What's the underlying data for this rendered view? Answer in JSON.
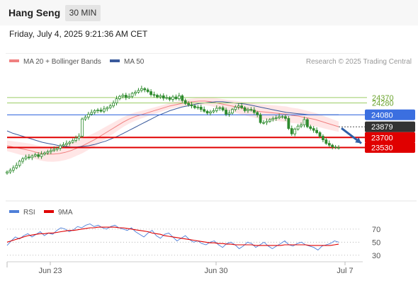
{
  "header": {
    "instrument": "Hang Seng",
    "interval": "30 MIN",
    "timestamp": "Friday, July 4, 2025 9:21:36 AM CET"
  },
  "legend": {
    "ma20_label": "MA 20 + Bollinger Bands",
    "ma50_label": "MA 50",
    "credit": "Research © 2025 Trading Central",
    "rsi_label": "RSI",
    "rsi_ma_label": "9MA"
  },
  "colors": {
    "ma20": "#f08080",
    "ma50": "#3a5a9c",
    "bollinger_fill": "#ffe0e0",
    "candle": "#2e8b2e",
    "resistance_line": "#9ccc65",
    "pivot": "#3b6fe0",
    "support": "#e00000",
    "current": "#333333",
    "rsi": "#4f7fd8",
    "rsi_ma": "#e00000",
    "arrow": "#2e5fa6"
  },
  "chart_data": [
    {
      "type": "candlestick",
      "title": "",
      "x_labels": [
        "Jun 23",
        "Jun 30",
        "Jul 7"
      ],
      "price_range": [
        22740,
        24880
      ],
      "levels": {
        "resistance": [
          24370,
          24280
        ],
        "pivot": 24080,
        "current": 23879,
        "support": [
          23700,
          23530
        ]
      },
      "level_labels": {
        "resistance": [
          "24370",
          "24280"
        ],
        "pivot": "24080",
        "current": "23879",
        "support": [
          "23700",
          "23530"
        ]
      },
      "close_series": [
        23120,
        23150,
        23190,
        23230,
        23300,
        23340,
        23370,
        23360,
        23390,
        23410,
        23380,
        23420,
        23440,
        23460,
        23480,
        23500,
        23520,
        23560,
        23580,
        23600,
        23620,
        23650,
        23690,
        23720,
        24010,
        24040,
        24090,
        24120,
        24150,
        24160,
        24140,
        24180,
        24200,
        24230,
        24280,
        24350,
        24390,
        24410,
        24370,
        24390,
        24440,
        24460,
        24490,
        24520,
        24500,
        24470,
        24420,
        24410,
        24380,
        24400,
        24360,
        24370,
        24340,
        24380,
        24350,
        24400,
        24320,
        24270,
        24250,
        24230,
        24200,
        24210,
        24170,
        24140,
        24110,
        24130,
        24150,
        24190,
        24200,
        24160,
        24090,
        24110,
        24170,
        24210,
        24230,
        24200,
        24150,
        24170,
        24160,
        24120,
        24080,
        23950,
        23950,
        23970,
        24000,
        24020,
        24030,
        24050,
        24050,
        24020,
        23850,
        23760,
        23840,
        23890,
        23910,
        24000,
        23880,
        23850,
        23820,
        23780,
        23720,
        23660,
        23600,
        23570,
        23540,
        23530,
        23530
      ],
      "ma20": [
        23560,
        23540,
        23520,
        23500,
        23480,
        23450,
        23430,
        23420,
        23420,
        23430,
        23450,
        23480,
        23520,
        23560,
        23610,
        23660,
        23720,
        23780,
        23840,
        23900,
        23960,
        24010,
        24050,
        24080,
        24110,
        24140,
        24170,
        24200,
        24230,
        24250,
        24270,
        24290,
        24300,
        24310,
        24310,
        24300,
        24280,
        24260,
        24240,
        24220,
        24200,
        24180,
        24160,
        24140,
        24130,
        24120,
        24110,
        24100,
        24090,
        24070,
        24060,
        24040,
        24020,
        24000,
        23970,
        23940,
        23910,
        23880
      ],
      "ma50": [
        23810,
        23770,
        23740,
        23710,
        23680,
        23650,
        23620,
        23600,
        23580,
        23560,
        23550,
        23540,
        23540,
        23550,
        23560,
        23580,
        23610,
        23640,
        23680,
        23720,
        23770,
        23820,
        23870,
        23920,
        23970,
        24020,
        24070,
        24110,
        24150,
        24180,
        24210,
        24230,
        24250,
        24270,
        24280,
        24290,
        24300,
        24300,
        24290,
        24280,
        24270,
        24260,
        24240,
        24220,
        24200,
        24180,
        24160,
        24140,
        24120,
        24110,
        24100,
        24090,
        24080,
        24080,
        24080,
        24080,
        24080,
        24080
      ],
      "projection": {
        "from": 23879,
        "to": 23530
      }
    },
    {
      "type": "line",
      "title": "RSI",
      "y_ticks": [
        70,
        50,
        30
      ],
      "ylim": [
        20,
        85
      ],
      "series": [
        {
          "name": "RSI",
          "values": [
            45,
            52,
            58,
            55,
            60,
            63,
            58,
            62,
            66,
            60,
            64,
            62,
            68,
            72,
            70,
            66,
            69,
            74,
            72,
            76,
            78,
            74,
            76,
            72,
            70,
            74,
            76,
            72,
            70,
            68,
            72,
            66,
            62,
            58,
            64,
            68,
            60,
            56,
            62,
            64,
            58,
            52,
            56,
            60,
            54,
            50,
            52,
            48,
            46,
            50,
            52,
            46,
            42,
            48,
            50,
            46,
            40,
            44,
            50,
            48,
            42,
            46,
            50,
            44,
            40,
            44,
            48,
            52,
            46,
            44,
            48,
            50,
            46,
            44,
            42,
            38,
            44,
            46,
            48,
            52,
            50
          ]
        },
        {
          "name": "9MA",
          "values": [
            50,
            52,
            54,
            56,
            58,
            60,
            61,
            62,
            63,
            63,
            64,
            64,
            65,
            66,
            67,
            68,
            68,
            69,
            70,
            71,
            72,
            72,
            73,
            73,
            73,
            73,
            73,
            72,
            72,
            71,
            70,
            69,
            68,
            67,
            66,
            64,
            63,
            62,
            60,
            59,
            58,
            57,
            56,
            55,
            54,
            53,
            52,
            51,
            50,
            49,
            49,
            48,
            48,
            47,
            47,
            46,
            46,
            46,
            46,
            46,
            45,
            45,
            45,
            45,
            45,
            45,
            45,
            46,
            46,
            46,
            46,
            46,
            46,
            45,
            45,
            45,
            45,
            45,
            45,
            46,
            47
          ]
        }
      ]
    }
  ]
}
